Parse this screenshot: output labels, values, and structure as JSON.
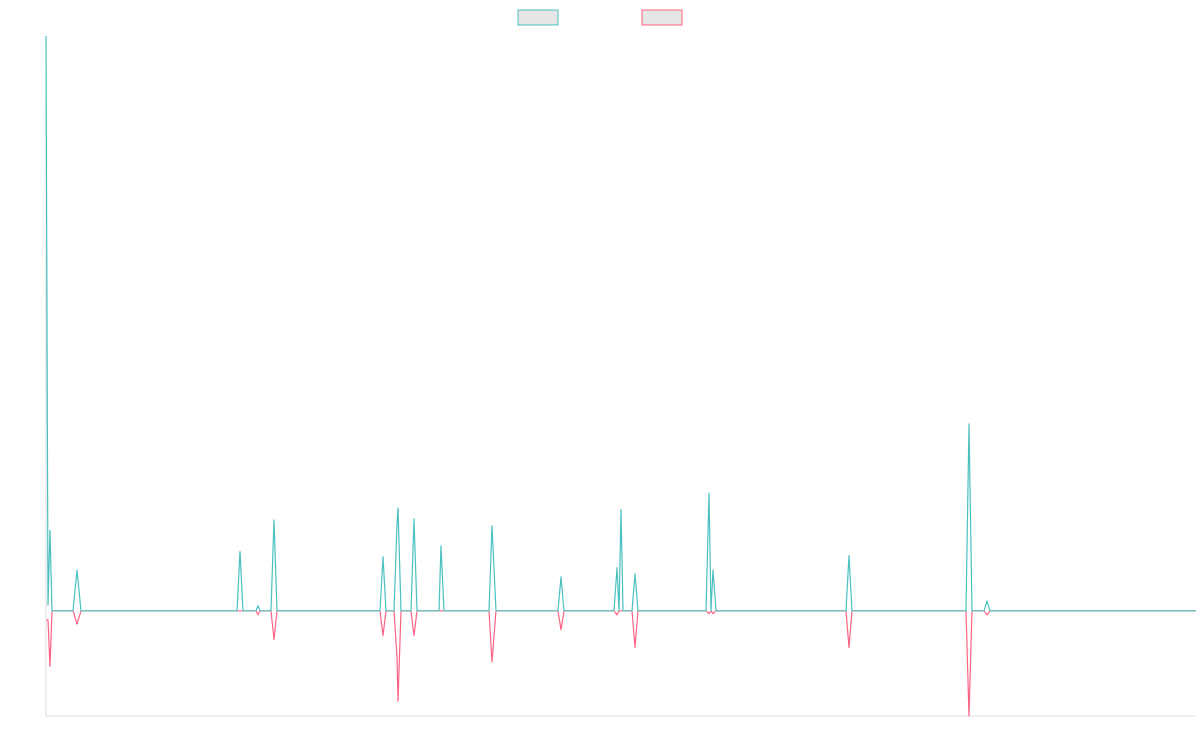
{
  "chart_data": {
    "type": "line",
    "x": [
      0,
      0.4,
      0.8,
      1.2,
      5.4,
      6.2,
      7.0,
      38.2,
      38.8,
      39.4,
      42.0,
      42.4,
      42.8,
      45.0,
      45.6,
      46.2,
      66.8,
      67.4,
      68.0,
      69.6,
      70.2,
      70.4,
      71.0,
      73.0,
      73.6,
      74.2,
      78.6,
      79.0,
      79.6,
      88.6,
      89.2,
      90.0,
      102.4,
      103.0,
      103.6,
      113.6,
      114.2,
      114.6,
      115.0,
      115.4,
      117.2,
      117.8,
      118.4,
      132.0,
      132.6,
      133.0,
      133.4,
      134.0,
      160.0,
      160.6,
      161.2,
      184.0,
      184.6,
      185.2,
      187.6,
      188.2,
      188.8,
      230
    ],
    "series": [
      {
        "color": "#4bc0c0",
        "values": [
          100,
          1,
          14,
          0,
          0,
          7.1,
          0,
          0,
          10.3,
          0,
          0,
          0.9,
          0,
          0,
          15.8,
          0,
          0,
          9.4,
          0,
          0,
          15,
          17.9,
          0,
          0,
          16,
          0,
          0,
          11.3,
          0,
          0,
          14.8,
          0,
          0,
          5.9,
          0,
          0,
          7.5,
          0,
          17.6,
          0,
          0,
          6.4,
          0,
          0,
          20.5,
          0,
          7.1,
          0,
          0,
          9.6,
          0,
          0,
          32.5,
          0,
          0,
          1.7,
          0,
          0
        ]
      },
      {
        "color": "#ff6384",
        "values": [
          -1.6,
          -1.6,
          -9.7,
          0,
          0,
          -2.3,
          0,
          0,
          0,
          0,
          0,
          -0.7,
          0,
          0,
          -5,
          0,
          0,
          -4.3,
          0,
          0,
          -8,
          -15.7,
          0,
          0,
          -4.3,
          0,
          0,
          0,
          0,
          0,
          -8.9,
          0,
          0,
          -3.3,
          0,
          0,
          -0.7,
          0,
          0,
          0,
          0,
          -6.4,
          0,
          0,
          -0.5,
          0,
          -0.5,
          0,
          0,
          -6.4,
          0,
          0,
          -18.3,
          0,
          0,
          -0.7,
          0,
          0
        ]
      }
    ],
    "xlim": [
      0,
      230
    ],
    "ylim": [
      -18.3,
      100
    ],
    "legend": "top"
  }
}
